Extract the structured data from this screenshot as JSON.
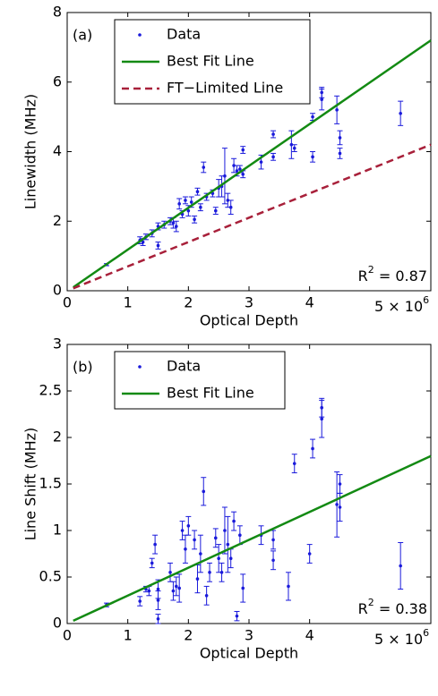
{
  "chart_data": [
    {
      "type": "scatter",
      "label": "(a)",
      "xlabel": "Optical Depth",
      "ylabel": "Linewidth (MHz)",
      "x_scale_label": {
        "base": "5 × 10",
        "exponent": "6"
      },
      "annotation": {
        "base": "R",
        "exponent": "2",
        "text": " = 0.87"
      },
      "xlim": [
        0,
        6
      ],
      "xticks": [
        0,
        1,
        2,
        3,
        4
      ],
      "ylim": [
        0,
        8
      ],
      "yticks": [
        0,
        2,
        4,
        6,
        8
      ],
      "legend": "upper left",
      "series": [
        {
          "name": "Data",
          "style": "points",
          "color": "#1a1adb",
          "x": [
            0.65,
            1.2,
            1.25,
            1.3,
            1.4,
            1.5,
            1.5,
            1.6,
            1.7,
            1.75,
            1.8,
            1.85,
            1.9,
            1.95,
            2.0,
            2.05,
            2.1,
            2.15,
            2.2,
            2.25,
            2.3,
            2.4,
            2.45,
            2.5,
            2.55,
            2.6,
            2.65,
            2.7,
            2.75,
            2.8,
            2.85,
            2.9,
            2.9,
            3.2,
            3.4,
            3.4,
            3.7,
            3.75,
            4.05,
            4.05,
            4.2,
            4.2,
            4.45,
            4.5,
            4.5,
            5.5
          ],
          "values": [
            0.75,
            1.45,
            1.4,
            1.55,
            1.65,
            1.3,
            1.85,
            1.9,
            2.0,
            1.95,
            1.85,
            2.5,
            2.2,
            2.6,
            2.3,
            2.55,
            2.05,
            2.85,
            2.4,
            3.55,
            2.7,
            2.8,
            2.3,
            2.95,
            3.0,
            3.3,
            2.6,
            2.4,
            3.6,
            3.45,
            3.5,
            3.35,
            4.05,
            3.7,
            3.85,
            4.5,
            4.2,
            4.1,
            3.85,
            5.0,
            5.7,
            5.5,
            5.2,
            4.4,
            3.95,
            5.1
          ],
          "errors": [
            0.03,
            0.1,
            0.1,
            0.08,
            0.1,
            0.1,
            0.1,
            0.1,
            0.1,
            0.15,
            0.15,
            0.15,
            0.1,
            0.1,
            0.15,
            0.15,
            0.1,
            0.1,
            0.1,
            0.15,
            0.1,
            0.1,
            0.1,
            0.25,
            0.3,
            0.8,
            0.2,
            0.2,
            0.2,
            0.15,
            0.1,
            0.1,
            0.1,
            0.2,
            0.1,
            0.1,
            0.4,
            0.1,
            0.15,
            0.1,
            0.15,
            0.3,
            0.4,
            0.2,
            0.15,
            0.35
          ]
        },
        {
          "name": "Best Fit Line",
          "style": "line",
          "color": "#138a13",
          "x": [
            0.1,
            6
          ],
          "values": [
            0.1,
            7.2
          ]
        },
        {
          "name": "FT−Limited Line",
          "style": "dashed",
          "color": "#a8203a",
          "x": [
            0.1,
            6
          ],
          "values": [
            0.07,
            4.2
          ]
        }
      ]
    },
    {
      "type": "scatter",
      "label": "(b)",
      "xlabel": "Optical Depth",
      "ylabel": "Line Shift (MHz)",
      "x_scale_label": {
        "base": "5 × 10",
        "exponent": "6"
      },
      "annotation": {
        "base": "R",
        "exponent": "2",
        "text": " = 0.38"
      },
      "xlim": [
        0,
        6
      ],
      "xticks": [
        0,
        1,
        2,
        3,
        4
      ],
      "ylim": [
        0,
        3
      ],
      "yticks": [
        0,
        0.5,
        1,
        1.5,
        2,
        2.5,
        3
      ],
      "legend": "upper left",
      "series": [
        {
          "name": "Data",
          "style": "points",
          "color": "#1a1adb",
          "x": [
            0.65,
            1.2,
            1.3,
            1.35,
            1.4,
            1.45,
            1.5,
            1.5,
            1.5,
            1.7,
            1.75,
            1.8,
            1.85,
            1.9,
            1.95,
            2.0,
            2.1,
            2.15,
            2.2,
            2.25,
            2.3,
            2.35,
            2.45,
            2.5,
            2.55,
            2.6,
            2.65,
            2.7,
            2.75,
            2.8,
            2.85,
            2.9,
            3.2,
            3.4,
            3.4,
            3.65,
            3.75,
            4.0,
            4.05,
            4.2,
            4.2,
            4.45,
            4.5,
            4.5,
            5.5
          ],
          "values": [
            0.2,
            0.24,
            0.37,
            0.35,
            0.65,
            0.85,
            0.05,
            0.25,
            0.37,
            0.55,
            0.35,
            0.4,
            0.38,
            1.0,
            0.8,
            1.05,
            0.9,
            0.48,
            0.75,
            1.42,
            0.3,
            0.55,
            0.92,
            0.7,
            0.55,
            1.0,
            0.85,
            0.7,
            1.1,
            0.08,
            0.95,
            0.38,
            0.95,
            0.9,
            0.68,
            0.4,
            1.72,
            0.75,
            1.88,
            2.2,
            2.32,
            1.28,
            1.5,
            1.25,
            0.62
          ],
          "errors": [
            0.02,
            0.05,
            0.03,
            0.05,
            0.05,
            0.1,
            0.05,
            0.1,
            0.1,
            0.1,
            0.1,
            0.1,
            0.15,
            0.1,
            0.15,
            0.1,
            0.1,
            0.15,
            0.2,
            0.15,
            0.1,
            0.1,
            0.1,
            0.15,
            0.1,
            0.25,
            0.3,
            0.1,
            0.1,
            0.05,
            0.1,
            0.15,
            0.1,
            0.1,
            0.1,
            0.15,
            0.1,
            0.1,
            0.1,
            0.2,
            0.1,
            0.35,
            0.1,
            0.15,
            0.25
          ]
        },
        {
          "name": "Best Fit Line",
          "style": "line",
          "color": "#138a13",
          "x": [
            0.1,
            6
          ],
          "values": [
            0.03,
            1.8
          ]
        }
      ]
    }
  ]
}
